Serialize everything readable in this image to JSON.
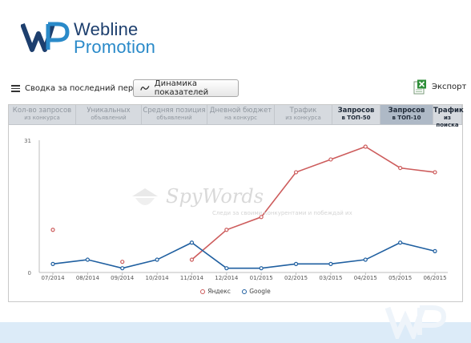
{
  "logo": {
    "line1": "Webline",
    "line2": "Promotion"
  },
  "toolbar": {
    "summary_label": "Сводка за последний период",
    "dynamics_label": "Динамика показателей",
    "export_label": "Экспорт"
  },
  "tabs": [
    {
      "label": "Кол-во запросов",
      "sub": "из конкурса",
      "dark": false,
      "active": false
    },
    {
      "label": "Уникальных",
      "sub": "объявлений",
      "dark": false,
      "active": false
    },
    {
      "label": "Средняя позиция",
      "sub": "объявлений",
      "dark": false,
      "active": false
    },
    {
      "label": "Дневной бюджет",
      "sub": "на конкурс",
      "dark": false,
      "active": false
    },
    {
      "label": "Трафик",
      "sub": "из конкурса",
      "dark": false,
      "active": false
    },
    {
      "label": "Запросов",
      "sub": "в ТОП-50",
      "dark": true,
      "active": false
    },
    {
      "label": "Запросов",
      "sub": "в ТОП-10",
      "dark": true,
      "active": true
    },
    {
      "label": "Трафик",
      "sub": "из поиска",
      "dark": true,
      "active": false
    }
  ],
  "watermark": {
    "brand": "SpyWords",
    "tagline": "Следи за своими конкурентами и побеждай их"
  },
  "chart_data": {
    "type": "line",
    "categories": [
      "07/2014",
      "08/2014",
      "09/2014",
      "10/2014",
      "11/2014",
      "12/2014",
      "01/2015",
      "02/2015",
      "03/2015",
      "04/2015",
      "05/2015",
      "06/2015"
    ],
    "yticks": [
      0,
      31
    ],
    "ylim": [
      0,
      31
    ],
    "colors": {
      "yandex": "#cd5c5c",
      "google": "#1f5fa0"
    },
    "series": [
      {
        "name": "Яндекс",
        "key": "yandex",
        "values": [
          10,
          null,
          2.5,
          null,
          3,
          10,
          13,
          23.5,
          26.5,
          29.5,
          24.5,
          23.5
        ],
        "segments": [
          [
            4,
            11
          ]
        ]
      },
      {
        "name": "Google",
        "key": "google",
        "values": [
          2,
          3,
          1,
          3,
          7,
          1,
          1,
          2,
          2,
          3,
          7,
          5
        ],
        "segments": [
          [
            0,
            11
          ]
        ]
      }
    ]
  }
}
